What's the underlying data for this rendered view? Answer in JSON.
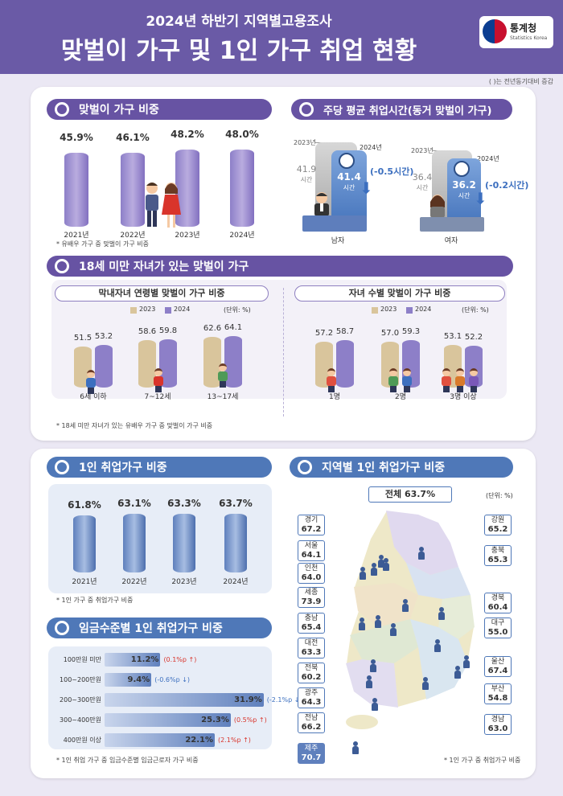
{
  "header": {
    "subtitle": "2024년 하반기 지역별고용조사",
    "title": "맞벌이 가구 및 1인 가구 취업 현황",
    "logo_name": "통계청",
    "logo_en": "Statistics Korea",
    "note": "( )는 전년동기대비 증감"
  },
  "dual_income": {
    "title": "맞벌이 가구 비중",
    "note": "* 유배우 가구 중 맞벌이 가구 비중",
    "chart_data": {
      "type": "bar",
      "categories": [
        "2021년",
        "2022년",
        "2023년",
        "2024년"
      ],
      "labels": [
        "45.9%",
        "46.1%",
        "48.2%",
        "48.0%"
      ],
      "values": [
        45.9,
        46.1,
        48.2,
        48.0
      ]
    }
  },
  "work_hours": {
    "title": "주당 평균 취업시간(동거 맞벌이 가구)",
    "unit": "시간",
    "men": {
      "label": "남자",
      "y2023_label": "2023년",
      "y2024_label": "2024년",
      "v2023": "41.9",
      "v2024": "41.4",
      "change": "(-0.5시간)"
    },
    "women": {
      "label": "여자",
      "y2023_label": "2023년",
      "y2024_label": "2024년",
      "v2023": "36.4",
      "v2024": "36.2",
      "change": "(-0.2시간)"
    },
    "chart_data": {
      "type": "bar",
      "categories": [
        "남자",
        "여자"
      ],
      "series": [
        {
          "name": "2023년",
          "values": [
            41.9,
            36.4
          ]
        },
        {
          "name": "2024년",
          "values": [
            41.4,
            36.2
          ]
        }
      ]
    }
  },
  "children": {
    "title": "18세 미만 자녀가 있는 맞벌이 가구",
    "note": "* 18세 미만 자녀가 있는 유배우 가구 중 맞벌이 가구 비중",
    "legend_2023": "2023",
    "legend_2024": "2024",
    "unit": "(단위: %)",
    "colors": {
      "y2023": "#d9c59c",
      "y2024": "#8d7fc8"
    },
    "by_age": {
      "title": "막내자녀 연령별 맞벌이 가구 비중",
      "chart_data": {
        "type": "bar",
        "categories": [
          "6세 이하",
          "7~12세",
          "13~17세"
        ],
        "series": [
          {
            "name": "2023",
            "labels": [
              "51.5",
              "58.6",
              "62.6"
            ],
            "values": [
              51.5,
              58.6,
              62.6
            ]
          },
          {
            "name": "2024",
            "labels": [
              "53.2",
              "59.8",
              "64.1"
            ],
            "values": [
              53.2,
              59.8,
              64.1
            ]
          }
        ]
      }
    },
    "by_count": {
      "title": "자녀 수별 맞벌이 가구 비중",
      "chart_data": {
        "type": "bar",
        "categories": [
          "1명",
          "2명",
          "3명 이상"
        ],
        "series": [
          {
            "name": "2023",
            "labels": [
              "57.2",
              "57.0",
              "53.1"
            ],
            "values": [
              57.2,
              57.0,
              53.1
            ]
          },
          {
            "name": "2024",
            "labels": [
              "58.7",
              "59.3",
              "52.2"
            ],
            "values": [
              58.7,
              59.3,
              52.2
            ]
          }
        ]
      }
    }
  },
  "single": {
    "title": "1인 취업가구 비중",
    "note": "* 1인 가구 중 취업가구 비중",
    "chart_data": {
      "type": "bar",
      "categories": [
        "2021년",
        "2022년",
        "2023년",
        "2024년"
      ],
      "labels": [
        "61.8%",
        "63.1%",
        "63.3%",
        "63.7%"
      ],
      "values": [
        61.8,
        63.1,
        63.3,
        63.7
      ]
    }
  },
  "wage": {
    "title": "임금수준별 1인 취업가구 비중",
    "note": "* 1인 취업 가구 중 임금수준별 임금근로자 가구 비중",
    "chart_data": {
      "type": "bar",
      "categories": [
        "100만원 미만",
        "100~200만원",
        "200~300만원",
        "300~400만원",
        "400만원 이상"
      ],
      "labels": [
        "11.2%",
        "9.4%",
        "31.9%",
        "25.3%",
        "22.1%"
      ],
      "values": [
        11.2,
        9.4,
        31.9,
        25.3,
        22.1
      ],
      "changes": [
        "(0.1%p ↑)",
        "(-0.6%p ↓)",
        "(-2.1%p ↓)",
        "(0.5%p ↑)",
        "(2.1%p ↑)"
      ],
      "change_colors": [
        "#d9342b",
        "#3c6fbf",
        "#3c6fbf",
        "#d9342b",
        "#d9342b"
      ]
    }
  },
  "regional": {
    "title": "지역별 1인 취업가구 비중",
    "total": "전체 63.7%",
    "unit": "(단위: %)",
    "note": "* 1인 가구 중 취업가구 비중",
    "regions": [
      {
        "name": "경기",
        "value": "67.2"
      },
      {
        "name": "서울",
        "value": "64.1"
      },
      {
        "name": "인천",
        "value": "64.0"
      },
      {
        "name": "세종",
        "value": "73.9"
      },
      {
        "name": "충남",
        "value": "65.4"
      },
      {
        "name": "대전",
        "value": "63.3"
      },
      {
        "name": "전북",
        "value": "60.2"
      },
      {
        "name": "광주",
        "value": "64.3"
      },
      {
        "name": "전남",
        "value": "66.2"
      },
      {
        "name": "제주",
        "value": "70.7"
      },
      {
        "name": "강원",
        "value": "65.2"
      },
      {
        "name": "충북",
        "value": "65.3"
      },
      {
        "name": "경북",
        "value": "60.4"
      },
      {
        "name": "대구",
        "value": "55.0"
      },
      {
        "name": "울산",
        "value": "67.4"
      },
      {
        "name": "부산",
        "value": "54.8"
      },
      {
        "name": "경남",
        "value": "63.0"
      }
    ]
  }
}
